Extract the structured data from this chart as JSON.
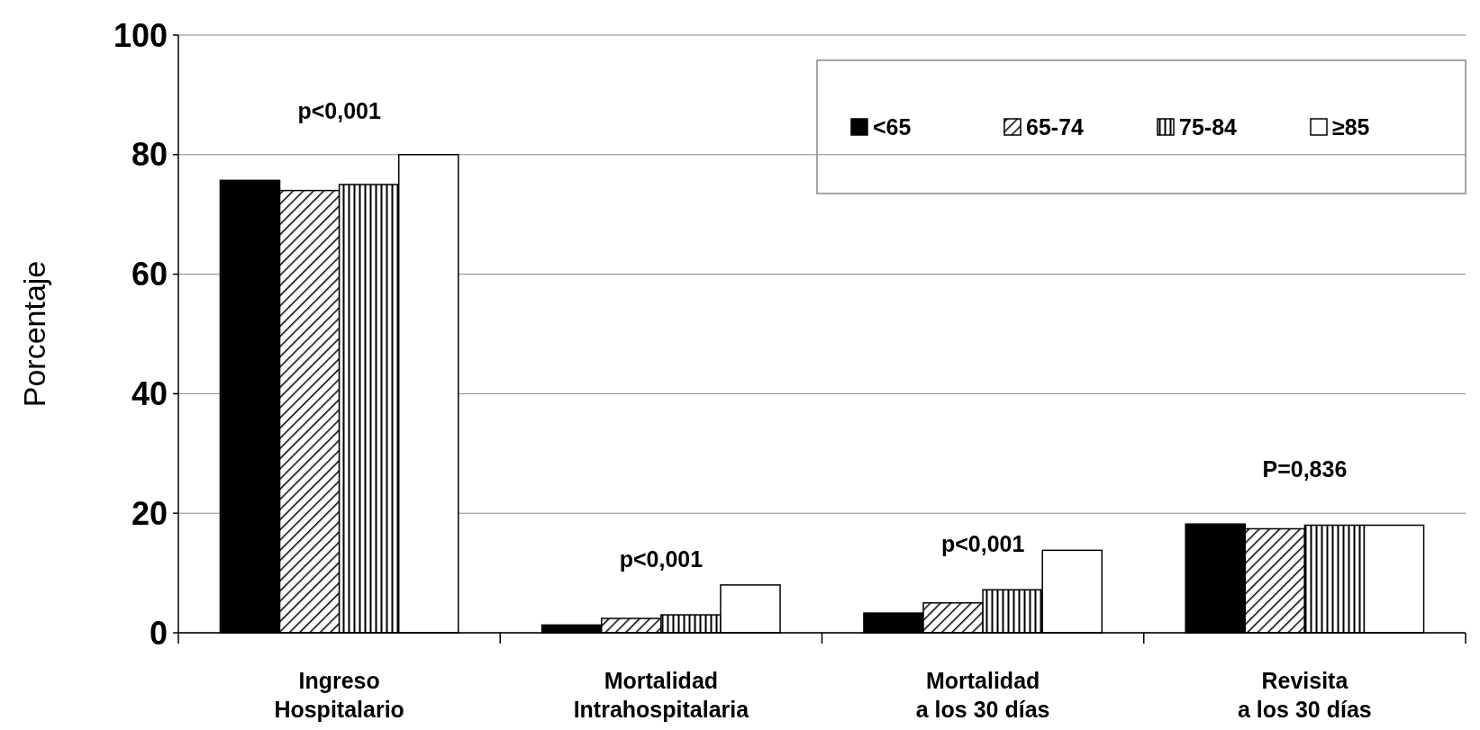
{
  "chart_data": {
    "type": "bar",
    "ylabel": "Porcentaje",
    "categories": [
      "Ingreso\nHospitalario",
      "Mortalidad\nIntrahospitalaria",
      "Mortalidad\na los 30 días",
      "Revisita\na los 30 días"
    ],
    "series": [
      {
        "name": "<65",
        "color": "#000000",
        "values": [
          75.7,
          1.3,
          3.3,
          18.2
        ]
      },
      {
        "name": "65-74",
        "color": "#000000",
        "values": [
          74,
          2.4,
          5,
          17.4
        ]
      },
      {
        "name": "75-84",
        "color": "#000000",
        "values": [
          75,
          3,
          7.2,
          18
        ]
      },
      {
        "name": "≥85",
        "color": "#ffffff",
        "values": [
          80,
          8,
          13.8,
          18
        ]
      }
    ],
    "ylim": [
      0,
      100
    ],
    "yticks": [
      0,
      20,
      40,
      60,
      80,
      100
    ],
    "grid": "y",
    "legend": "top right",
    "annotations": [
      "p<0,001",
      "p<0,001",
      "p<0,001",
      "P=0,836"
    ]
  }
}
